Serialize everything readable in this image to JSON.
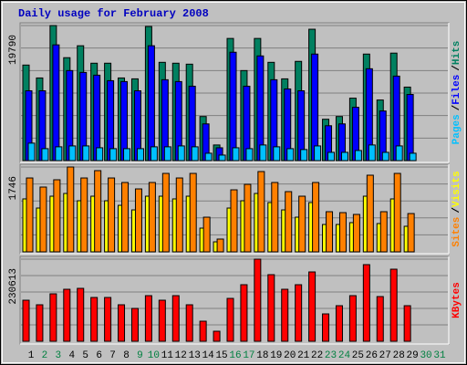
{
  "chart_data": [
    {
      "type": "bar",
      "title": "Daily usage for February 2008",
      "legend_separator": "/",
      "series": [
        {
          "name": "Hits",
          "color": "#008060",
          "values": [
            14000,
            12110,
            19790,
            15080,
            16830,
            14270,
            14270,
            12110,
            11980,
            19650,
            14400,
            14270,
            14130,
            6460,
            2290,
            17900,
            13190,
            17900,
            14400,
            11980,
            14540,
            19250,
            6060,
            6460,
            9150,
            15610,
            8880,
            15750,
            10770,
            null,
            null
          ]
        },
        {
          "name": "Files",
          "color": "#0000ff",
          "values": [
            10230,
            10230,
            16960,
            13190,
            12920,
            12520,
            11710,
            11580,
            10230,
            16830,
            11850,
            11580,
            10900,
            5380,
            1880,
            15880,
            10900,
            15340,
            11850,
            10500,
            10230,
            15610,
            5110,
            5380,
            7810,
            13460,
            7270,
            12380,
            9690,
            null,
            null
          ]
        },
        {
          "name": "Pages",
          "color": "#00c0ff",
          "values": [
            2560,
            1750,
            2020,
            2150,
            2150,
            1880,
            1750,
            1750,
            1750,
            2020,
            2020,
            2150,
            2020,
            1080,
            810,
            1880,
            1750,
            2290,
            2020,
            1750,
            1620,
            2150,
            1210,
            1210,
            1480,
            2290,
            1210,
            2150,
            1080,
            null,
            null
          ]
        }
      ],
      "ylim": [
        0,
        19790
      ],
      "yticks": [
        19790
      ],
      "grid": true
    },
    {
      "type": "bar",
      "legend_separator": "/",
      "series": [
        {
          "name": "Visits",
          "color": "#ffff00",
          "values": [
            1089,
            901,
            1145,
            1201,
            1051,
            1145,
            1051,
            957,
            863,
            1145,
            1145,
            1089,
            1145,
            488,
            206,
            901,
            1051,
            1201,
            1014,
            863,
            713,
            1014,
            563,
            563,
            601,
            1145,
            582,
            1089,
            526,
            null,
            null
          ]
        },
        {
          "name": "Sites",
          "color": "#ff8000",
          "values": [
            1520,
            1333,
            1483,
            1746,
            1520,
            1671,
            1520,
            1427,
            1295,
            1427,
            1614,
            1520,
            1614,
            713,
            263,
            1276,
            1389,
            1652,
            1427,
            1239,
            1145,
            1427,
            826,
            807,
            770,
            1577,
            826,
            1614,
            788,
            null,
            null
          ]
        }
      ],
      "ylim": [
        0,
        1746
      ],
      "yticks": [
        1746
      ],
      "grid": true
    },
    {
      "type": "bar",
      "categories": [
        1,
        2,
        3,
        4,
        5,
        6,
        7,
        8,
        9,
        10,
        11,
        12,
        13,
        14,
        15,
        16,
        17,
        18,
        19,
        20,
        21,
        22,
        23,
        24,
        25,
        26,
        27,
        28,
        29,
        30,
        31
      ],
      "category_colors": [
        "#000000",
        "#008040",
        "#008040",
        "#000000",
        "#000000",
        "#000000",
        "#000000",
        "#000000",
        "#008040",
        "#008040",
        "#000000",
        "#000000",
        "#000000",
        "#000000",
        "#000000",
        "#008040",
        "#008040",
        "#000000",
        "#000000",
        "#000000",
        "#000000",
        "#000000",
        "#008040",
        "#008040",
        "#000000",
        "#000000",
        "#000000",
        "#000000",
        "#000000",
        "#008040",
        "#008040"
      ],
      "series": [
        {
          "name": "KBytes",
          "color": "#ff0000",
          "values": [
            115290,
            102480,
            133220,
            146030,
            148600,
            122980,
            122980,
            102480,
            92230,
            128100,
            115290,
            128100,
            102480,
            56360,
            28180,
            120410,
            158840,
            230613,
            187030,
            146030,
            158840,
            194710,
            76860,
            99920,
            128100,
            215210,
            125540,
            202400,
            99920,
            null,
            null
          ]
        }
      ],
      "ylim": [
        0,
        230613
      ],
      "yticks": [
        230613
      ],
      "grid": true
    }
  ]
}
